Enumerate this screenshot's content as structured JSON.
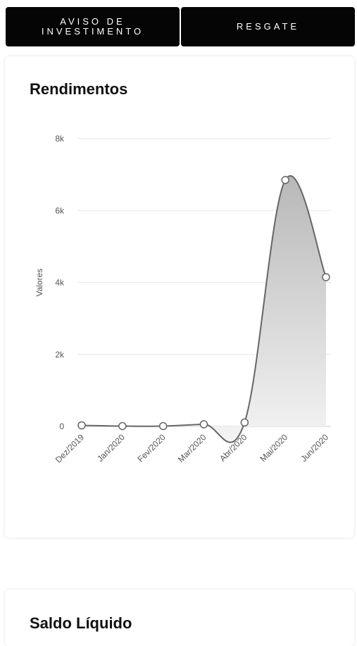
{
  "header": {
    "aviso_label": "AVISO DE\nINVESTIMENTO",
    "resgate_label": "RESGATE"
  },
  "rendimentos": {
    "title": "Rendimentos"
  },
  "saldo": {
    "title": "Saldo Líquido"
  },
  "chart_data": {
    "type": "area",
    "title": "Rendimentos",
    "xlabel": "",
    "ylabel": "Valores",
    "categories": [
      "Dez/2019",
      "Jan/2020",
      "Fev/2020",
      "Mar/2020",
      "Abr/2020",
      "Mai/2020",
      "Jun/2020"
    ],
    "series": [
      {
        "values": [
          30,
          10,
          10,
          60,
          110,
          6850,
          4150
        ]
      }
    ],
    "ylim": [
      0,
      8000
    ],
    "yticks": [
      0,
      2000,
      4000,
      6000,
      8000
    ],
    "ytick_labels": [
      "0",
      "2k",
      "4k",
      "6k",
      "8k"
    ],
    "grid": true,
    "colors": {
      "line": "#666666",
      "fill_top": "#b8b8b8",
      "fill_bottom": "#f4f4f4",
      "grid": "#e6e6ee",
      "baseline": "#ccccdd"
    }
  }
}
